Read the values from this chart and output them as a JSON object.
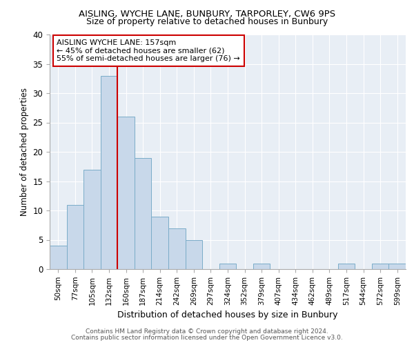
{
  "title1": "AISLING, WYCHE LANE, BUNBURY, TARPORLEY, CW6 9PS",
  "title2": "Size of property relative to detached houses in Bunbury",
  "xlabel": "Distribution of detached houses by size in Bunbury",
  "ylabel": "Number of detached properties",
  "categories": [
    "50sqm",
    "77sqm",
    "105sqm",
    "132sqm",
    "160sqm",
    "187sqm",
    "214sqm",
    "242sqm",
    "269sqm",
    "297sqm",
    "324sqm",
    "352sqm",
    "379sqm",
    "407sqm",
    "434sqm",
    "462sqm",
    "489sqm",
    "517sqm",
    "544sqm",
    "572sqm",
    "599sqm"
  ],
  "values": [
    4,
    11,
    17,
    33,
    26,
    19,
    9,
    7,
    5,
    0,
    1,
    0,
    1,
    0,
    0,
    0,
    0,
    1,
    0,
    1,
    1
  ],
  "bar_color": "#c8d8ea",
  "bar_edge_color": "#7aacc8",
  "red_line_index": 4,
  "annotation_title": "AISLING WYCHE LANE: 157sqm",
  "annotation_line1": "← 45% of detached houses are smaller (62)",
  "annotation_line2": "55% of semi-detached houses are larger (76) →",
  "annotation_box_color": "#ffffff",
  "annotation_box_edge": "#cc0000",
  "red_line_color": "#cc0000",
  "ylim": [
    0,
    40
  ],
  "yticks": [
    0,
    5,
    10,
    15,
    20,
    25,
    30,
    35,
    40
  ],
  "bg_color": "#e8eef5",
  "grid_color": "#ffffff",
  "footer1": "Contains HM Land Registry data © Crown copyright and database right 2024.",
  "footer2": "Contains public sector information licensed under the Open Government Licence v3.0."
}
